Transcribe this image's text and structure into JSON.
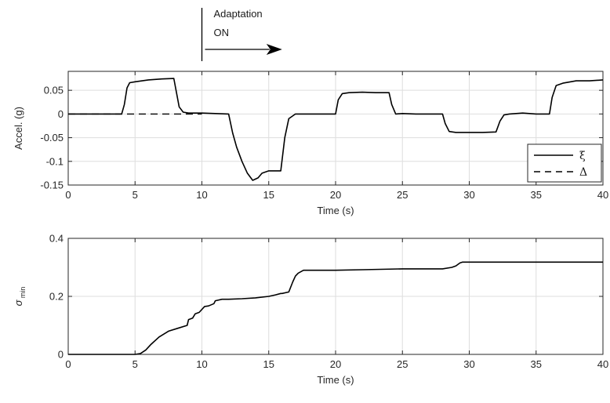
{
  "chart_data": [
    {
      "type": "line",
      "title": "",
      "xlabel": "Time (s)",
      "ylabel": "Accel. (g)",
      "xlim": [
        0,
        40
      ],
      "ylim": [
        -0.15,
        0.09
      ],
      "xticks": [
        0,
        5,
        10,
        15,
        20,
        25,
        30,
        35,
        40
      ],
      "xtick_labels": [
        "0",
        "5",
        "10",
        "15",
        "20",
        "25",
        "30",
        "35",
        "40"
      ],
      "yticks": [
        -0.15,
        -0.1,
        -0.05,
        0,
        0.05
      ],
      "ytick_labels": [
        "-0.15",
        "-0.1",
        "-0.05",
        "0",
        "0.05"
      ],
      "grid": true,
      "legend_position": "lower-right",
      "series": [
        {
          "name": "ξ",
          "style": "solid",
          "color": "#000000",
          "x": [
            0,
            4.0,
            4.2,
            4.4,
            4.6,
            5.0,
            6.0,
            7.0,
            7.9,
            8.1,
            8.3,
            8.6,
            9.0,
            10.0,
            11.0,
            12.0,
            12.3,
            12.6,
            13.0,
            13.4,
            13.8,
            14.2,
            14.5,
            15.0,
            15.5,
            15.9,
            16.2,
            16.5,
            17.0,
            18.0,
            20.0,
            20.2,
            20.5,
            21.0,
            22.0,
            23.0,
            24.0,
            24.2,
            24.5,
            25.0,
            26.0,
            27.0,
            28.0,
            28.2,
            28.5,
            29.0,
            30.0,
            31.0,
            32.0,
            32.3,
            32.6,
            33.0,
            34.0,
            35.0,
            36.0,
            36.2,
            36.5,
            37.0,
            38.0,
            39.0,
            40.0
          ],
          "y": [
            0,
            0,
            0.02,
            0.055,
            0.066,
            0.068,
            0.072,
            0.074,
            0.075,
            0.045,
            0.015,
            0.004,
            0.002,
            0.002,
            0.001,
            0,
            -0.04,
            -0.07,
            -0.1,
            -0.125,
            -0.14,
            -0.135,
            -0.125,
            -0.12,
            -0.12,
            -0.12,
            -0.05,
            -0.01,
            0.0,
            0.0,
            0.0,
            0.03,
            0.043,
            0.045,
            0.046,
            0.045,
            0.045,
            0.02,
            0.0,
            0.001,
            0.0,
            0.0,
            0.0,
            -0.02,
            -0.037,
            -0.039,
            -0.039,
            -0.039,
            -0.038,
            -0.015,
            -0.002,
            0.0,
            0.002,
            0.0,
            0.0,
            0.035,
            0.06,
            0.065,
            0.07,
            0.07,
            0.072
          ]
        },
        {
          "name": "Δ",
          "style": "dashed",
          "color": "#000000",
          "x": [
            0,
            10
          ],
          "y": [
            0,
            0
          ]
        }
      ],
      "annotations": [
        {
          "text_lines": [
            "Adaptation",
            "ON"
          ],
          "x": 10,
          "arrow_to_x": 16
        }
      ]
    },
    {
      "type": "line",
      "title": "",
      "xlabel": "Time (s)",
      "ylabel": "σ",
      "ylabel_sub": "min",
      "xlim": [
        0,
        40
      ],
      "ylim": [
        0,
        0.4
      ],
      "xticks": [
        0,
        5,
        10,
        15,
        20,
        25,
        30,
        35,
        40
      ],
      "xtick_labels": [
        "0",
        "5",
        "10",
        "15",
        "20",
        "25",
        "30",
        "35",
        "40"
      ],
      "yticks": [
        0,
        0.2,
        0.4
      ],
      "ytick_labels": [
        "0",
        "0.2",
        "0.4"
      ],
      "grid": true,
      "series": [
        {
          "style": "solid",
          "color": "#000000",
          "x": [
            0,
            5.0,
            5.4,
            5.8,
            6.2,
            6.8,
            7.5,
            8.2,
            8.9,
            9.0,
            9.3,
            9.5,
            9.8,
            10.0,
            10.2,
            10.5,
            10.9,
            11.0,
            11.5,
            12.0,
            13.0,
            14.0,
            15.0,
            15.5,
            15.9,
            16.0,
            16.5,
            16.8,
            17.0,
            17.2,
            17.6,
            18.0,
            20.0,
            22.0,
            25.0,
            28.0,
            28.7,
            29.0,
            29.3,
            29.5,
            32.0,
            35.0,
            40.0
          ],
          "y": [
            0,
            0,
            0.003,
            0.015,
            0.035,
            0.06,
            0.08,
            0.09,
            0.1,
            0.12,
            0.125,
            0.14,
            0.145,
            0.155,
            0.165,
            0.167,
            0.175,
            0.185,
            0.19,
            0.19,
            0.192,
            0.195,
            0.2,
            0.205,
            0.21,
            0.21,
            0.215,
            0.25,
            0.27,
            0.28,
            0.29,
            0.29,
            0.29,
            0.292,
            0.295,
            0.295,
            0.3,
            0.305,
            0.315,
            0.318,
            0.318,
            0.318,
            0.318
          ]
        }
      ]
    }
  ]
}
